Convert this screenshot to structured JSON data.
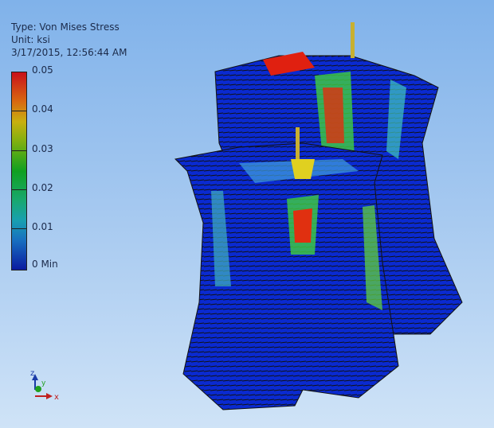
{
  "header": {
    "type": "Type: Von Mises Stress",
    "unit": "Unit: ksi",
    "timestamp": "3/17/2015, 12:56:44 AM"
  },
  "legend": {
    "labels": [
      "0.05",
      "0.04",
      "0.03",
      "0.02",
      "0.01",
      "0 Min"
    ],
    "colors": [
      "#c8101a",
      "#c8b010",
      "#10a020",
      "#18a870",
      "#1870c0",
      "#0a1aa0"
    ]
  },
  "triad": {
    "z": "z",
    "y": "y",
    "x": "x",
    "z_color": "#1a3aa8",
    "y_color": "#20a020",
    "x_color": "#c02020"
  },
  "model": {
    "base_color": "#0a2ad0",
    "hot_color": "#e02010",
    "mid_color": "#40e040",
    "edge_color": "#111111",
    "support_color": "#c8b030"
  }
}
